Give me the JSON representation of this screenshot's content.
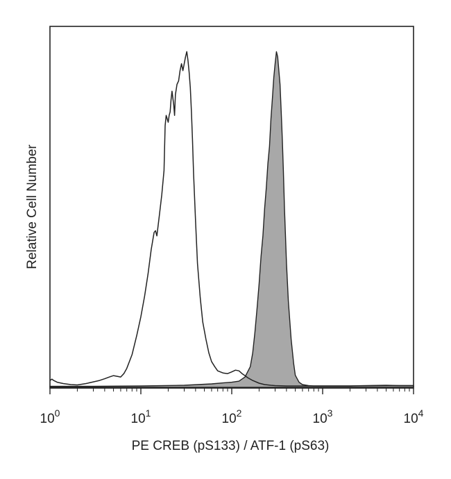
{
  "chart_data": {
    "type": "area",
    "xlabel": "PE CREB (pS133) / ATF-1 (pS63)",
    "ylabel": "Relative Cell Number",
    "x_scale": "log",
    "xlim": [
      1,
      10000
    ],
    "ylim": [
      0,
      1
    ],
    "grid": false,
    "x_ticks": [
      {
        "value": 1,
        "base": "10",
        "exp": "0"
      },
      {
        "value": 10,
        "base": "10",
        "exp": "1"
      },
      {
        "value": 100,
        "base": "10",
        "exp": "2"
      },
      {
        "value": 1000,
        "base": "10",
        "exp": "3"
      },
      {
        "value": 10000,
        "base": "10",
        "exp": "4"
      }
    ],
    "series": [
      {
        "style": "outline",
        "color": "#222222",
        "x": [
          1,
          1.05,
          1.1,
          1.2,
          1.4,
          1.7,
          2.0,
          2.5,
          3.0,
          3.5,
          4.0,
          4.5,
          5.0,
          5.5,
          6.0,
          6.5,
          7.0,
          8.0,
          9.0,
          10,
          11,
          12,
          13,
          14,
          14.5,
          15,
          16,
          17,
          18,
          18.5,
          19,
          20,
          20.5,
          21,
          21.5,
          22,
          23,
          23.5,
          24,
          25,
          26,
          27,
          28,
          29,
          30,
          31,
          32,
          33,
          34,
          35,
          36,
          37,
          38,
          40,
          42,
          45,
          48,
          52,
          56,
          60,
          65,
          70,
          80,
          90,
          100,
          110,
          120,
          130,
          140,
          150,
          170,
          200,
          230,
          270,
          300,
          400,
          500,
          700,
          1000,
          2000,
          3000,
          5000,
          7000,
          10000
        ],
        "y": [
          0.02,
          0.024,
          0.02,
          0.015,
          0.011,
          0.008,
          0.007,
          0.011,
          0.016,
          0.02,
          0.025,
          0.03,
          0.034,
          0.032,
          0.03,
          0.04,
          0.055,
          0.095,
          0.15,
          0.205,
          0.265,
          0.33,
          0.4,
          0.45,
          0.455,
          0.44,
          0.5,
          0.56,
          0.63,
          0.76,
          0.79,
          0.77,
          0.79,
          0.8,
          0.835,
          0.86,
          0.82,
          0.79,
          0.85,
          0.88,
          0.89,
          0.92,
          0.94,
          0.92,
          0.94,
          0.96,
          0.975,
          0.95,
          0.915,
          0.87,
          0.8,
          0.72,
          0.62,
          0.48,
          0.36,
          0.26,
          0.19,
          0.14,
          0.1,
          0.075,
          0.06,
          0.048,
          0.042,
          0.04,
          0.045,
          0.05,
          0.048,
          0.04,
          0.034,
          0.028,
          0.02,
          0.012,
          0.008,
          0.006,
          0.005,
          0.004,
          0.004,
          0.004,
          0.004,
          0.004,
          0.005,
          0.006,
          0.005,
          0.005
        ]
      },
      {
        "style": "filled",
        "color": "#a8a8a8",
        "x": [
          1,
          3,
          10,
          30,
          60,
          80,
          100,
          120,
          140,
          160,
          170,
          180,
          190,
          200,
          210,
          220,
          230,
          240,
          250,
          260,
          270,
          280,
          290,
          300,
          310,
          320,
          330,
          340,
          350,
          360,
          370,
          380,
          400,
          420,
          450,
          480,
          500,
          550,
          600,
          700,
          800,
          1000,
          2000,
          5000,
          10000
        ],
        "y": [
          0.003,
          0.003,
          0.004,
          0.006,
          0.01,
          0.013,
          0.015,
          0.018,
          0.03,
          0.06,
          0.1,
          0.16,
          0.23,
          0.3,
          0.38,
          0.44,
          0.52,
          0.58,
          0.65,
          0.7,
          0.78,
          0.84,
          0.9,
          0.94,
          0.975,
          0.96,
          0.92,
          0.88,
          0.8,
          0.72,
          0.63,
          0.52,
          0.36,
          0.25,
          0.14,
          0.07,
          0.035,
          0.015,
          0.008,
          0.005,
          0.004,
          0.004,
          0.004,
          0.005,
          0.005
        ]
      }
    ]
  }
}
